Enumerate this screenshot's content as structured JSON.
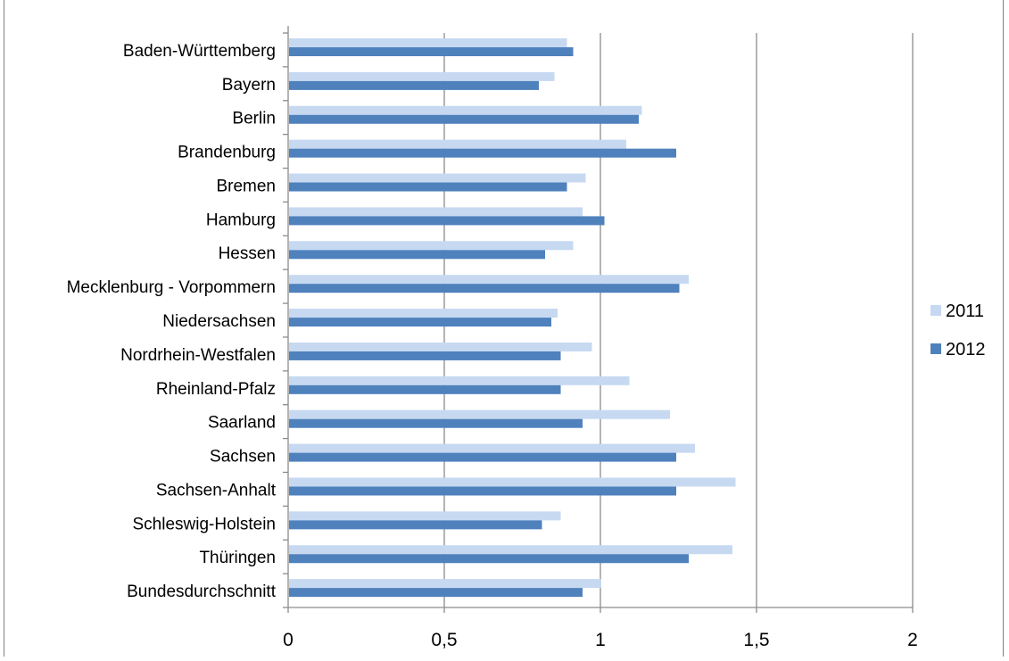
{
  "chart_data": {
    "type": "bar",
    "orientation": "horizontal",
    "title": "",
    "categories": [
      "Baden-Württemberg",
      "Bayern",
      "Berlin",
      "Brandenburg",
      "Bremen",
      "Hamburg",
      "Hessen",
      "Mecklenburg - Vorpommern",
      "Niedersachsen",
      "Nordrhein-Westfalen",
      "Rheinland-Pfalz",
      "Saarland",
      "Sachsen",
      "Sachsen-Anhalt",
      "Schleswig-Holstein",
      "Thüringen",
      "Bundesdurchschnitt"
    ],
    "series": [
      {
        "name": "2011",
        "color": "#c6d9f1",
        "values": [
          0.89,
          0.85,
          1.13,
          1.08,
          0.95,
          0.94,
          0.91,
          1.28,
          0.86,
          0.97,
          1.09,
          1.22,
          1.3,
          1.43,
          0.87,
          1.42,
          1.0
        ]
      },
      {
        "name": "2012",
        "color": "#4f81bd",
        "values": [
          0.91,
          0.8,
          1.12,
          1.24,
          0.89,
          1.01,
          0.82,
          1.25,
          0.84,
          0.87,
          0.87,
          0.94,
          1.24,
          1.24,
          0.81,
          1.28,
          0.94
        ]
      }
    ],
    "xlim": [
      0,
      2
    ],
    "x_ticks": [
      0,
      0.5,
      1,
      1.5,
      2
    ],
    "x_tick_labels": [
      "0",
      "0,5",
      "1",
      "1,5",
      "2"
    ],
    "grid": "vertical",
    "legend_position": "right"
  }
}
